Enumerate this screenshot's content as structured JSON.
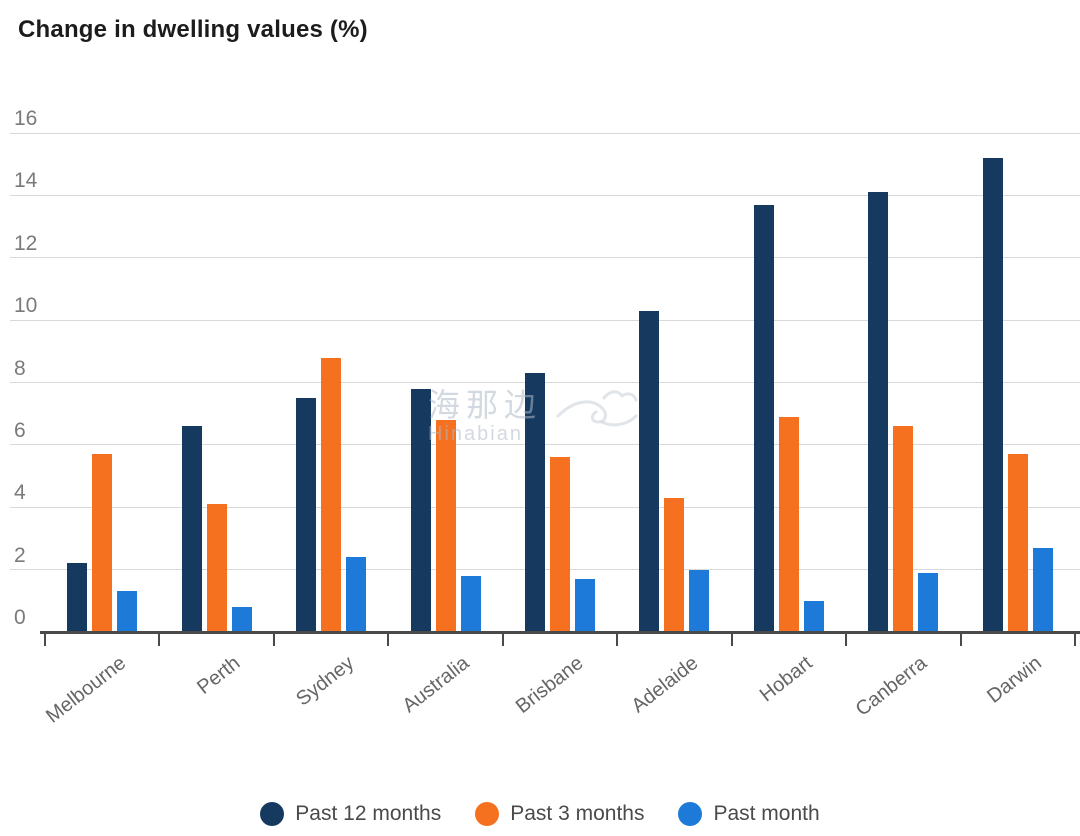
{
  "title": "Change in dwelling values (%)",
  "watermark": {
    "line1": "海那边",
    "line2": "Hinabian",
    "bird_icon": "bird-swoosh"
  },
  "chart_data": {
    "type": "bar",
    "title": "Change in dwelling values (%)",
    "categories": [
      "Melbourne",
      "Perth",
      "Sydney",
      "Australia",
      "Brisbane",
      "Adelaide",
      "Hobart",
      "Canberra",
      "Darwin"
    ],
    "series": [
      {
        "name": "Past 12 months",
        "color": "#15395f",
        "values": [
          2.2,
          6.6,
          7.5,
          7.8,
          8.3,
          10.3,
          13.7,
          14.1,
          15.2
        ]
      },
      {
        "name": "Past 3 months",
        "color": "#f5701f",
        "values": [
          5.7,
          4.1,
          8.8,
          6.8,
          5.6,
          4.3,
          6.9,
          6.6,
          5.7
        ]
      },
      {
        "name": "Past month",
        "color": "#1d7ad9",
        "values": [
          1.3,
          0.8,
          2.4,
          1.8,
          1.7,
          2.0,
          1.0,
          1.9,
          2.7
        ]
      }
    ],
    "xlabel": "",
    "ylabel": "",
    "ylim": [
      0,
      16
    ],
    "yticks": [
      0,
      2,
      4,
      6,
      8,
      10,
      12,
      14,
      16
    ],
    "grid": true,
    "legend_position": "bottom"
  },
  "colors": {
    "title_text": "#1c1c1c",
    "grid_line": "#d9d9d9",
    "axis_line": "#4a4a4a",
    "y_tick_text": "#7a7a7a",
    "x_tick_text": "#666666",
    "legend_text": "#4a4a4a",
    "series_navy": "#15395f",
    "series_orange": "#f5701f",
    "series_blue": "#1d7ad9",
    "background": "#ffffff"
  }
}
